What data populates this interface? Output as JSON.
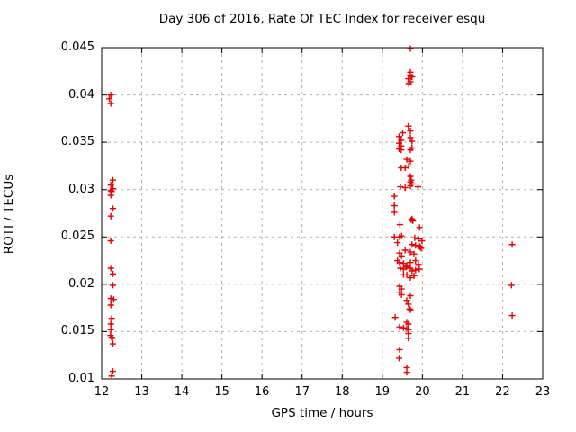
{
  "title": "Day 306 of 2016, Rate Of TEC Index for receiver esqu",
  "chart_data": {
    "type": "scatter",
    "title": "Day 306 of 2016, Rate Of TEC Index for receiver esqu",
    "xlabel": "GPS time / hours",
    "ylabel": "ROTI / TECUs",
    "xlim": [
      12,
      23
    ],
    "ylim": [
      0.01,
      0.045
    ],
    "grid": true,
    "legend": "none",
    "xticks": {
      "values": [
        12,
        13,
        14,
        15,
        16,
        17,
        18,
        19,
        20,
        21,
        22,
        23
      ],
      "labels": [
        "12",
        "13",
        "14",
        "15",
        "16",
        "17",
        "18",
        "19",
        "20",
        "21",
        "22",
        "23"
      ]
    },
    "yticks": {
      "values": [
        0.01,
        0.015,
        0.02,
        0.025,
        0.03,
        0.035,
        0.04,
        0.045
      ],
      "labels": [
        "0.01",
        "0.015",
        "0.02",
        "0.025",
        "0.03",
        "0.035",
        "0.04",
        "0.045"
      ]
    },
    "marker": {
      "shape": "plus",
      "color": "#e60000",
      "size": 7
    },
    "colors": {
      "frame": "#000000",
      "grid": "#b0b0b0",
      "background": "#ffffff"
    },
    "series": [
      {
        "name": "ROTI",
        "points": [
          [
            12.23,
            0.04
          ],
          [
            12.19,
            0.0396
          ],
          [
            12.23,
            0.0391
          ],
          [
            12.28,
            0.031
          ],
          [
            12.23,
            0.0305
          ],
          [
            12.28,
            0.0301
          ],
          [
            12.23,
            0.0299
          ],
          [
            12.25,
            0.0298
          ],
          [
            12.23,
            0.0294
          ],
          [
            12.28,
            0.028
          ],
          [
            12.23,
            0.0272
          ],
          [
            12.23,
            0.0246
          ],
          [
            12.23,
            0.0217
          ],
          [
            12.28,
            0.0211
          ],
          [
            12.28,
            0.0199
          ],
          [
            12.23,
            0.0185
          ],
          [
            12.3,
            0.0184
          ],
          [
            12.23,
            0.0178
          ],
          [
            12.25,
            0.0164
          ],
          [
            12.23,
            0.0158
          ],
          [
            12.23,
            0.0152
          ],
          [
            12.22,
            0.0146
          ],
          [
            12.25,
            0.0144
          ],
          [
            12.27,
            0.0143
          ],
          [
            12.28,
            0.0137
          ],
          [
            12.28,
            0.0108
          ],
          [
            12.25,
            0.0103
          ],
          [
            19.7,
            0.0449
          ],
          [
            19.7,
            0.0424
          ],
          [
            19.7,
            0.0421
          ],
          [
            19.74,
            0.0419
          ],
          [
            19.65,
            0.0417
          ],
          [
            19.7,
            0.0414
          ],
          [
            19.66,
            0.0412
          ],
          [
            19.65,
            0.0367
          ],
          [
            19.7,
            0.0362
          ],
          [
            19.51,
            0.036
          ],
          [
            19.42,
            0.0356
          ],
          [
            19.7,
            0.0355
          ],
          [
            19.47,
            0.0352
          ],
          [
            19.74,
            0.0351
          ],
          [
            19.42,
            0.0349
          ],
          [
            19.47,
            0.0346
          ],
          [
            19.74,
            0.0344
          ],
          [
            19.42,
            0.0343
          ],
          [
            19.47,
            0.0342
          ],
          [
            19.7,
            0.0342
          ],
          [
            19.61,
            0.0332
          ],
          [
            19.7,
            0.033
          ],
          [
            19.47,
            0.0323
          ],
          [
            19.57,
            0.0323
          ],
          [
            19.66,
            0.0325
          ],
          [
            19.7,
            0.0314
          ],
          [
            19.72,
            0.031
          ],
          [
            19.7,
            0.0308
          ],
          [
            19.74,
            0.0306
          ],
          [
            19.7,
            0.0304
          ],
          [
            19.45,
            0.0303
          ],
          [
            19.57,
            0.0302
          ],
          [
            19.89,
            0.0303
          ],
          [
            19.3,
            0.0293
          ],
          [
            19.3,
            0.0283
          ],
          [
            19.3,
            0.0276
          ],
          [
            19.74,
            0.0269
          ],
          [
            19.72,
            0.0268
          ],
          [
            19.76,
            0.0267
          ],
          [
            19.44,
            0.0263
          ],
          [
            19.93,
            0.026
          ],
          [
            19.3,
            0.025
          ],
          [
            19.43,
            0.025
          ],
          [
            19.48,
            0.0251
          ],
          [
            19.81,
            0.0249
          ],
          [
            19.9,
            0.0248
          ],
          [
            19.99,
            0.0246
          ],
          [
            19.38,
            0.0244
          ],
          [
            19.74,
            0.0242
          ],
          [
            19.83,
            0.0241
          ],
          [
            19.93,
            0.024
          ],
          [
            19.95,
            0.0239
          ],
          [
            19.97,
            0.0238
          ],
          [
            19.57,
            0.0236
          ],
          [
            19.7,
            0.0234
          ],
          [
            19.43,
            0.0233
          ],
          [
            19.79,
            0.0232
          ],
          [
            19.48,
            0.023
          ],
          [
            19.38,
            0.0225
          ],
          [
            19.83,
            0.0225
          ],
          [
            19.43,
            0.0223
          ],
          [
            19.7,
            0.0223
          ],
          [
            19.53,
            0.0222
          ],
          [
            19.9,
            0.0221
          ],
          [
            19.61,
            0.022
          ],
          [
            19.45,
            0.0217
          ],
          [
            19.61,
            0.0219
          ],
          [
            19.59,
            0.0218
          ],
          [
            19.53,
            0.0216
          ],
          [
            19.92,
            0.0216
          ],
          [
            19.7,
            0.0217
          ],
          [
            19.83,
            0.0215
          ],
          [
            19.74,
            0.0214
          ],
          [
            19.53,
            0.021
          ],
          [
            19.61,
            0.021
          ],
          [
            19.79,
            0.0209
          ],
          [
            19.7,
            0.0207
          ],
          [
            19.43,
            0.0198
          ],
          [
            19.48,
            0.0195
          ],
          [
            19.43,
            0.0191
          ],
          [
            19.48,
            0.0189
          ],
          [
            19.7,
            0.0188
          ],
          [
            19.61,
            0.0183
          ],
          [
            19.65,
            0.0179
          ],
          [
            19.68,
            0.0174
          ],
          [
            19.7,
            0.0173
          ],
          [
            19.32,
            0.0165
          ],
          [
            19.61,
            0.016
          ],
          [
            19.65,
            0.0158
          ],
          [
            19.43,
            0.0155
          ],
          [
            19.53,
            0.0154
          ],
          [
            19.61,
            0.0153
          ],
          [
            19.65,
            0.0152
          ],
          [
            19.65,
            0.0148
          ],
          [
            19.65,
            0.0143
          ],
          [
            19.43,
            0.0131
          ],
          [
            19.42,
            0.0122
          ],
          [
            19.61,
            0.0112
          ],
          [
            19.61,
            0.0107
          ],
          [
            22.24,
            0.0242
          ],
          [
            22.22,
            0.0199
          ],
          [
            22.24,
            0.0167
          ]
        ]
      }
    ]
  }
}
